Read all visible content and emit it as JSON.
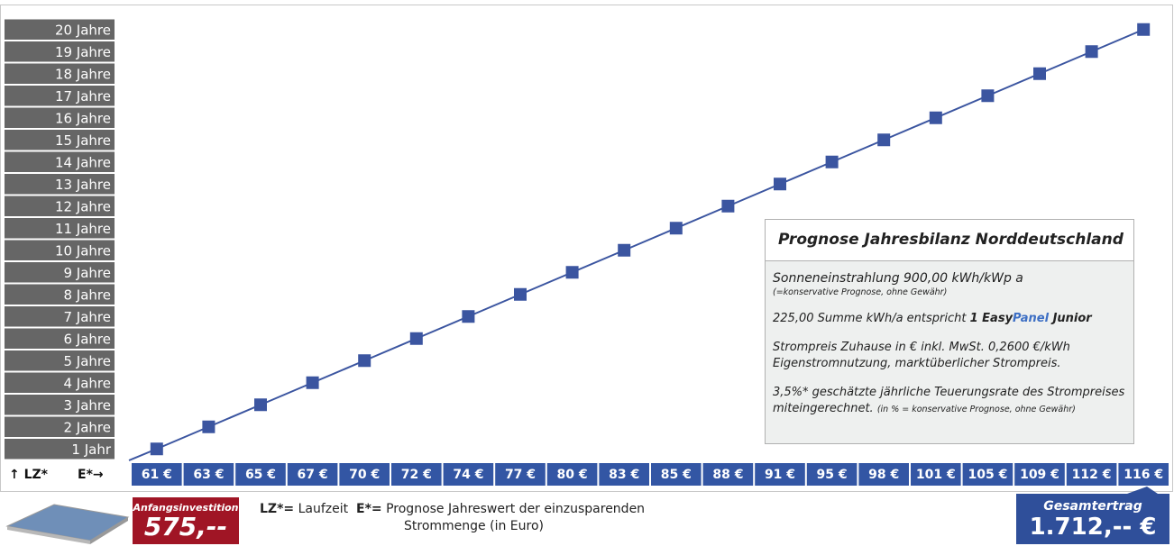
{
  "chart_data": {
    "type": "line",
    "y_axis_label": "↑ LZ*",
    "x_axis_label": "E*→",
    "categories": [
      "61 €",
      "63 €",
      "65 €",
      "67 €",
      "70 €",
      "72 €",
      "74 €",
      "77 €",
      "80 €",
      "83 €",
      "85 €",
      "88 €",
      "91 €",
      "95 €",
      "98 €",
      "101 €",
      "105 €",
      "109 €",
      "112 €",
      "116 €"
    ],
    "values": [
      1,
      2,
      3,
      4,
      5,
      6,
      7,
      8,
      9,
      10,
      11,
      12,
      13,
      14,
      15,
      16,
      17,
      18,
      19,
      20
    ],
    "color": "#3b55a0",
    "ylim": [
      0.5,
      20.5
    ],
    "yticks": [
      {
        "value": 1,
        "label": "1 Jahr"
      },
      {
        "value": 2,
        "label": "2 Jahre"
      },
      {
        "value": 3,
        "label": "3 Jahre"
      },
      {
        "value": 4,
        "label": "4 Jahre"
      },
      {
        "value": 5,
        "label": "5 Jahre"
      },
      {
        "value": 6,
        "label": "6 Jahre"
      },
      {
        "value": 7,
        "label": "7 Jahre"
      },
      {
        "value": 8,
        "label": "8 Jahre"
      },
      {
        "value": 9,
        "label": "9 Jahre"
      },
      {
        "value": 10,
        "label": "10 Jahre"
      },
      {
        "value": 11,
        "label": "11 Jahre"
      },
      {
        "value": 12,
        "label": "12 Jahre"
      },
      {
        "value": 13,
        "label": "13 Jahre"
      },
      {
        "value": 14,
        "label": "14 Jahre"
      },
      {
        "value": 15,
        "label": "15 Jahre"
      },
      {
        "value": 16,
        "label": "16 Jahre"
      },
      {
        "value": 17,
        "label": "17 Jahre"
      },
      {
        "value": 18,
        "label": "18 Jahre"
      },
      {
        "value": 19,
        "label": "19 Jahre"
      },
      {
        "value": 20,
        "label": "20 Jahre"
      }
    ]
  },
  "info_box": {
    "title": "Prognose Jahresbilanz Norddeutschland",
    "line1": "Sonneneinstrahlung 900,00 kWh/kWp a",
    "line1_note": "(=konservative Prognose, ohne Gewähr)",
    "line2": "225,00 Summe kWh/a entspricht ",
    "product_a": "1 Easy",
    "product_b": "Panel",
    "product_c": " Junior",
    "line3": "Strompreis Zuhause in € inkl. MwSt. 0,2600 €/kWh",
    "line4": "Eigenstromnutzung, marktüberlicher Strompreis.",
    "line5": "3,5%* geschätzte jährliche Teuerungsrate des Strompreises",
    "line6": "miteingerechnet. ",
    "line6_note": "(in % = konservative Prognose, ohne Gewähr)"
  },
  "footer": {
    "investment_label": "Anfangsinvestition",
    "investment_value": "575,--",
    "lz_key": "LZ*=",
    "lz_text": "Laufzeit",
    "e_key": "E*=",
    "e_text1": "Prognose Jahreswert der einzusparenden",
    "e_text2": "Strommenge (in Euro)",
    "total_label": "Gesamtertrag",
    "total_value": "1.712,-- €"
  }
}
